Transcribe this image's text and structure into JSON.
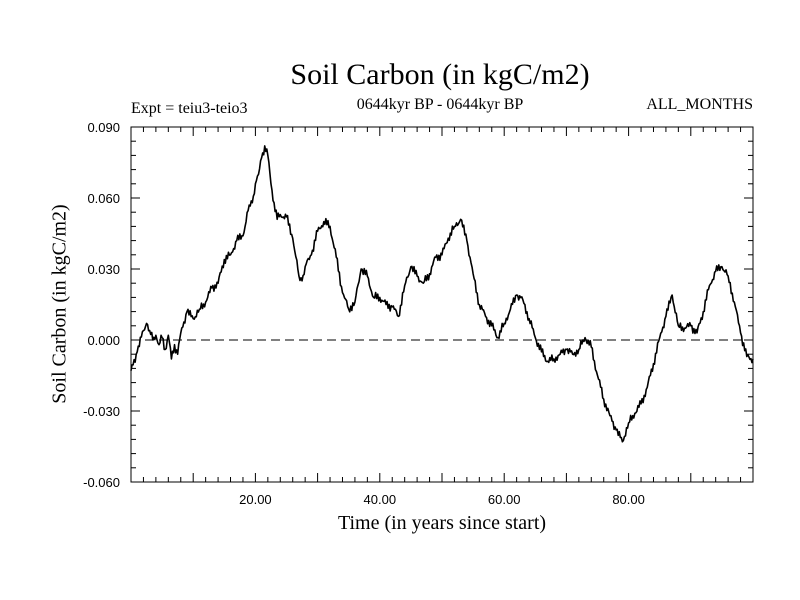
{
  "chart_data": {
    "type": "line",
    "title": "Soil Carbon (in kgC/m2)",
    "subtitle_left": "Expt = teiu3-teio3",
    "subtitle_center": "0644kyr BP - 0644kyr BP",
    "subtitle_right": "ALL_MONTHS",
    "xlabel": "Time (in years since start)",
    "ylabel": "Soil Carbon (in kgC/m2)",
    "xlim": [
      0,
      100
    ],
    "ylim": [
      -0.06,
      0.09
    ],
    "xticks": [
      20,
      40,
      60,
      80
    ],
    "xtick_labels": [
      "20.00",
      "40.00",
      "60.00",
      "80.00"
    ],
    "yticks": [
      -0.06,
      -0.03,
      0.0,
      0.03,
      0.06,
      0.09
    ],
    "ytick_labels": [
      "-0.060",
      "-0.030",
      "0.000",
      "0.030",
      "0.060",
      "0.090"
    ],
    "zero_line": true,
    "series": [
      {
        "name": "Soil Carbon",
        "x": [
          0,
          1,
          2,
          2.5,
          3,
          3.5,
          4,
          4.5,
          5,
          5.5,
          6,
          6.5,
          7,
          7.5,
          8,
          9,
          10,
          11,
          12,
          13,
          14,
          15,
          16,
          17,
          18,
          19,
          19.5,
          20,
          20.5,
          21,
          21.5,
          22,
          22.5,
          23,
          23.5,
          24,
          25,
          26,
          27,
          27.5,
          28,
          29,
          30,
          31,
          32,
          33,
          34,
          35,
          36,
          37,
          38,
          39,
          40,
          41,
          42,
          43,
          44,
          45,
          46,
          47,
          48,
          49,
          50,
          51,
          52,
          53,
          54,
          55,
          56,
          57,
          58,
          59,
          60,
          61,
          62,
          63,
          64,
          65,
          66,
          67,
          68,
          69,
          70,
          71,
          72,
          73,
          74,
          75,
          76,
          77,
          78,
          79,
          80,
          81,
          82,
          83,
          84,
          85,
          86,
          87,
          88,
          89,
          90,
          91,
          92,
          93,
          94,
          95,
          96,
          97,
          98,
          99,
          100
        ],
        "y": [
          -0.013,
          -0.005,
          0.004,
          0.007,
          0.004,
          0.0,
          0.002,
          -0.002,
          0.001,
          -0.004,
          0.002,
          -0.008,
          -0.002,
          -0.006,
          0.003,
          0.012,
          0.009,
          0.013,
          0.016,
          0.022,
          0.024,
          0.034,
          0.036,
          0.042,
          0.044,
          0.057,
          0.058,
          0.066,
          0.07,
          0.077,
          0.082,
          0.078,
          0.066,
          0.058,
          0.051,
          0.053,
          0.052,
          0.043,
          0.027,
          0.025,
          0.031,
          0.036,
          0.046,
          0.05,
          0.048,
          0.035,
          0.02,
          0.013,
          0.016,
          0.03,
          0.027,
          0.018,
          0.018,
          0.015,
          0.014,
          0.01,
          0.023,
          0.031,
          0.027,
          0.024,
          0.028,
          0.035,
          0.036,
          0.043,
          0.048,
          0.051,
          0.042,
          0.028,
          0.015,
          0.01,
          0.006,
          0.001,
          0.007,
          0.013,
          0.019,
          0.017,
          0.009,
          0.001,
          -0.005,
          -0.009,
          -0.008,
          -0.006,
          -0.004,
          -0.006,
          -0.004,
          0.001,
          -0.003,
          -0.015,
          -0.025,
          -0.032,
          -0.038,
          -0.043,
          -0.035,
          -0.031,
          -0.027,
          -0.02,
          -0.01,
          0.001,
          0.01,
          0.019,
          0.006,
          0.005,
          0.006,
          0.003,
          0.012,
          0.023,
          0.029,
          0.031,
          0.027,
          0.016,
          0.003,
          -0.007,
          -0.008
        ]
      }
    ]
  }
}
